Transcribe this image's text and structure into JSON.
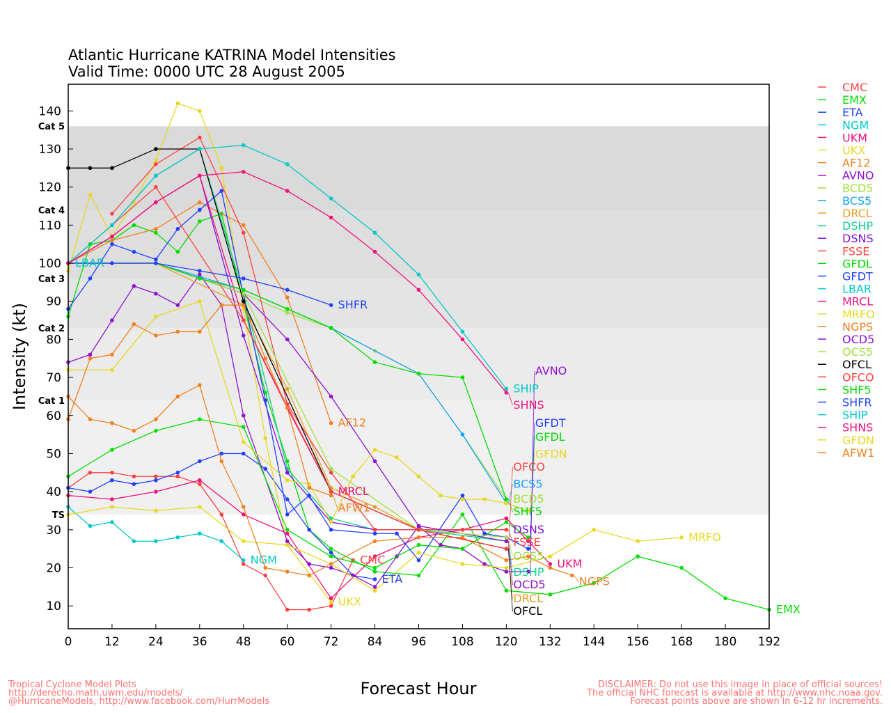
{
  "chart_data": {
    "type": "line",
    "title": "Atlantic Hurricane KATRINA Model Intensities",
    "subtitle": "Valid Time: 0000 UTC 28 August 2005",
    "xlabel": "Forecast Hour",
    "ylabel": "Intensity (kt)",
    "xlim": [
      0,
      192
    ],
    "ylim": [
      4,
      147
    ],
    "xticks": [
      0,
      12,
      24,
      36,
      48,
      60,
      72,
      84,
      96,
      108,
      120,
      132,
      144,
      156,
      168,
      180,
      192
    ],
    "yticks": [
      10,
      20,
      30,
      40,
      50,
      60,
      70,
      80,
      90,
      100,
      110,
      120,
      130,
      140
    ],
    "categories": [
      {
        "label": "TS",
        "from": 34,
        "to": 64,
        "color": "#f0f0f0"
      },
      {
        "label": "Cat 1",
        "from": 64,
        "to": 83,
        "color": "#ebebeb"
      },
      {
        "label": "Cat 2",
        "from": 83,
        "to": 96,
        "color": "#e4e4e4"
      },
      {
        "label": "Cat 3",
        "from": 96,
        "to": 114,
        "color": "#dedede"
      },
      {
        "label": "Cat 4",
        "from": 114,
        "to": 136,
        "color": "#dadada"
      },
      {
        "label": "Cat 5",
        "from": 136,
        "to": 147,
        "color": "#ffffff"
      }
    ],
    "series": [
      {
        "name": "CMC",
        "color": "#ff4040",
        "x": [
          0,
          6,
          12,
          18,
          24,
          30,
          36,
          42,
          48,
          54,
          60,
          66,
          72,
          78
        ],
        "y": [
          41,
          45,
          45,
          44,
          44,
          44,
          42,
          34,
          21,
          18,
          9,
          9,
          10,
          22
        ]
      },
      {
        "name": "EMX",
        "color": "#00dd00",
        "x": [
          0,
          6,
          12,
          18,
          24,
          30,
          36,
          42,
          54,
          60,
          66,
          72,
          84,
          96,
          108,
          120,
          132,
          144,
          156,
          168,
          180,
          192
        ],
        "y": [
          86,
          105,
          106,
          110,
          108,
          103,
          111,
          113,
          66,
          48,
          30,
          25,
          19,
          18,
          34,
          14,
          13,
          16,
          23,
          20,
          12,
          9
        ]
      },
      {
        "name": "ETA",
        "color": "#2040ff",
        "x": [
          0,
          6,
          12,
          18,
          24,
          30,
          36,
          42,
          48,
          54,
          60,
          66,
          72,
          78,
          84
        ],
        "y": [
          41,
          40,
          43,
          42,
          43,
          45,
          48,
          50,
          50,
          46,
          38,
          30,
          24,
          18,
          17
        ]
      },
      {
        "name": "NGM",
        "color": "#00c8c8",
        "x": [
          0,
          6,
          12,
          18,
          24,
          30,
          36,
          42,
          48
        ],
        "y": [
          36,
          31,
          32,
          27,
          27,
          28,
          29,
          27,
          22
        ]
      },
      {
        "name": "UKM",
        "color": "#f0107a",
        "x": [
          0,
          12,
          24,
          36,
          48,
          60,
          72,
          84,
          96,
          108,
          120,
          126,
          132
        ],
        "y": [
          39,
          38,
          40,
          43,
          34,
          29,
          12,
          23,
          28,
          30,
          33,
          27,
          21
        ]
      },
      {
        "name": "UKX",
        "color": "#e8d820",
        "x": [
          0,
          6,
          12,
          18,
          24,
          30,
          36,
          42,
          48,
          54,
          60,
          72
        ],
        "y": [
          98,
          118,
          107,
          116,
          127,
          142,
          140,
          125,
          88,
          54,
          26,
          11
        ]
      },
      {
        "name": "AF12",
        "color": "#f08020",
        "x": [
          0,
          12,
          24,
          36,
          48,
          60,
          72
        ],
        "y": [
          100,
          106,
          109,
          116,
          110,
          91,
          58
        ]
      },
      {
        "name": "AVNO",
        "color": "#9010d0",
        "x": [
          0,
          6,
          12,
          18,
          24,
          30,
          36,
          42,
          48,
          60,
          66,
          72,
          78,
          84,
          90,
          96,
          102,
          108,
          114,
          120,
          126
        ],
        "y": [
          74,
          76,
          85,
          94,
          92,
          89,
          97,
          89,
          60,
          27,
          21,
          20,
          18,
          15,
          23,
          31,
          26,
          25,
          21,
          19,
          19
        ]
      },
      {
        "name": "BCD5",
        "color": "#a0e040",
        "x": [
          0,
          12,
          24,
          36,
          48,
          60,
          72,
          84,
          96,
          108,
          120
        ],
        "y": [
          100,
          100,
          100,
          96,
          92,
          87,
          83,
          77,
          71,
          55,
          38
        ]
      },
      {
        "name": "BCS5",
        "color": "#10a0ff",
        "x": [
          0,
          24,
          48,
          72,
          96,
          108,
          120
        ],
        "y": [
          100,
          100,
          93,
          83,
          71,
          55,
          37
        ]
      },
      {
        "name": "DRCL",
        "color": "#e8a020",
        "x": [
          0,
          24,
          48,
          60,
          72,
          84,
          96,
          120
        ],
        "y": [
          100,
          100,
          89,
          67,
          41,
          36,
          30,
          25
        ]
      },
      {
        "name": "DSHP",
        "color": "#10d090",
        "x": [
          0,
          12,
          24,
          36,
          48,
          60,
          72,
          84,
          96,
          120
        ],
        "y": [
          100,
          110,
          123,
          130,
          92,
          46,
          33,
          30,
          30,
          27
        ]
      },
      {
        "name": "DSNS",
        "color": "#8010e0",
        "x": [
          0,
          12,
          24,
          36,
          48,
          60,
          72,
          84,
          96,
          108,
          120
        ],
        "y": [
          100,
          107,
          116,
          123,
          81,
          45,
          32,
          30,
          30,
          30,
          30
        ]
      },
      {
        "name": "FSSE",
        "color": "#ff4040",
        "x": [
          12,
          24,
          36,
          48,
          60,
          72,
          84,
          96,
          108,
          120
        ],
        "y": [
          113,
          126,
          133,
          108,
          63,
          45,
          30,
          30,
          30,
          30
        ]
      },
      {
        "name": "GFDL",
        "color": "#00dd00",
        "x": [
          0,
          12,
          24,
          36,
          48,
          60,
          72,
          84,
          96,
          108,
          120,
          126
        ],
        "y": [
          44,
          51,
          56,
          59,
          57,
          30,
          23,
          20,
          26,
          25,
          32,
          28
        ]
      },
      {
        "name": "GFDT",
        "color": "#2040ff",
        "x": [
          0,
          6,
          12,
          18,
          24,
          30,
          36,
          42,
          54,
          60,
          66,
          72,
          84,
          90,
          96,
          108,
          114,
          120,
          126
        ],
        "y": [
          88,
          96,
          105,
          103,
          101,
          109,
          114,
          119,
          64,
          34,
          39,
          30,
          29,
          29,
          22,
          39,
          29,
          28,
          25
        ]
      },
      {
        "name": "LBAR",
        "color": "#00c8c8",
        "x": [
          0
        ],
        "y": [
          100
        ]
      },
      {
        "name": "MRCL",
        "color": "#f0107a",
        "x": [
          0,
          12,
          24,
          36,
          48,
          60,
          72
        ],
        "y": [
          100,
          107,
          116,
          123,
          85,
          62,
          40
        ]
      },
      {
        "name": "MRFO",
        "color": "#e8d820",
        "x": [
          0,
          12,
          24,
          36,
          48,
          60,
          72,
          84,
          96,
          108,
          120,
          132,
          144,
          156,
          168
        ],
        "y": [
          34,
          36,
          35,
          36,
          27,
          26,
          21,
          14,
          24,
          21,
          20,
          23,
          30,
          27,
          28
        ]
      },
      {
        "name": "NGPS",
        "color": "#f08020",
        "x": [
          0,
          6,
          12,
          18,
          24,
          30,
          36,
          42,
          48,
          54,
          60,
          66,
          72,
          84,
          96,
          108,
          120,
          126,
          132,
          138
        ],
        "y": [
          65,
          59,
          58,
          56,
          59,
          65,
          68,
          48,
          36,
          20,
          19,
          18,
          21,
          27,
          28,
          28,
          22,
          23,
          20,
          18
        ]
      },
      {
        "name": "OCD5",
        "color": "#9010d0",
        "x": [
          0,
          12,
          24,
          36,
          48,
          60,
          72,
          84,
          96,
          120
        ],
        "y": [
          100,
          100,
          100,
          96,
          92,
          80,
          65,
          48,
          31,
          27
        ]
      },
      {
        "name": "OCS5",
        "color": "#a0e040",
        "x": [
          0,
          24,
          48,
          72,
          96,
          120
        ],
        "y": [
          100,
          100,
          92,
          46,
          30,
          28
        ]
      },
      {
        "name": "OFCL",
        "color": "#000000",
        "x": [
          0,
          6,
          12,
          24,
          36,
          48,
          72,
          96,
          120
        ],
        "y": [
          125,
          125,
          125,
          130,
          130,
          90,
          40,
          30,
          25
        ]
      },
      {
        "name": "OFCO",
        "color": "#ff4040",
        "x": [
          0,
          24,
          48,
          72,
          96,
          120
        ],
        "y": [
          100,
          120,
          85,
          40,
          30,
          25
        ]
      },
      {
        "name": "SHF5",
        "color": "#00dd00",
        "x": [
          0,
          24,
          36,
          48,
          60,
          72,
          84,
          96,
          108,
          120
        ],
        "y": [
          100,
          100,
          96,
          93,
          88,
          83,
          74,
          71,
          70,
          38
        ]
      },
      {
        "name": "SHFR",
        "color": "#2040ff",
        "x": [
          0,
          12,
          24,
          36,
          48,
          60,
          72
        ],
        "y": [
          100,
          100,
          100,
          98,
          96,
          93,
          89
        ]
      },
      {
        "name": "SHIP",
        "color": "#00c8c8",
        "x": [
          0,
          12,
          24,
          36,
          48,
          60,
          72,
          84,
          96,
          108,
          120
        ],
        "y": [
          100,
          110,
          123,
          130,
          131,
          126,
          117,
          108,
          97,
          82,
          67
        ]
      },
      {
        "name": "SHNS",
        "color": "#f0107a",
        "x": [
          0,
          12,
          24,
          36,
          48,
          60,
          72,
          84,
          96,
          108,
          120
        ],
        "y": [
          100,
          107,
          116,
          123,
          124,
          119,
          112,
          103,
          93,
          80,
          66
        ]
      },
      {
        "name": "GFDN",
        "color": "#e8d820",
        "x": [
          0,
          12,
          24,
          36,
          48,
          60,
          66,
          72,
          78,
          84,
          90,
          96,
          102,
          108,
          114,
          120,
          126
        ],
        "y": [
          72,
          72,
          86,
          90,
          53,
          43,
          42,
          32,
          44,
          51,
          49,
          44,
          39,
          38,
          38,
          37,
          35
        ]
      },
      {
        "name": "AFW1",
        "color": "#f08020",
        "x": [
          0,
          6,
          12,
          18,
          24,
          30,
          36,
          42,
          48,
          54,
          60,
          66,
          72
        ],
        "y": [
          59,
          75,
          76,
          84,
          81,
          82,
          82,
          89,
          89,
          75,
          62,
          41,
          39
        ]
      }
    ],
    "legend_placement": "right"
  },
  "footer": {
    "left": [
      "Tropical Cyclone Model Plots",
      "http://derecho.math.uwm.edu/models/",
      "@HurricaneModels, http://www.facebook.com/HurrModels"
    ],
    "right": [
      "DISCLAIMER: Do not use this image in place of official sources!",
      "The official NHC forecast is available at http://www.nhc.noaa.gov.",
      "Forecast points above are shown in 6-12 hr increments."
    ]
  }
}
